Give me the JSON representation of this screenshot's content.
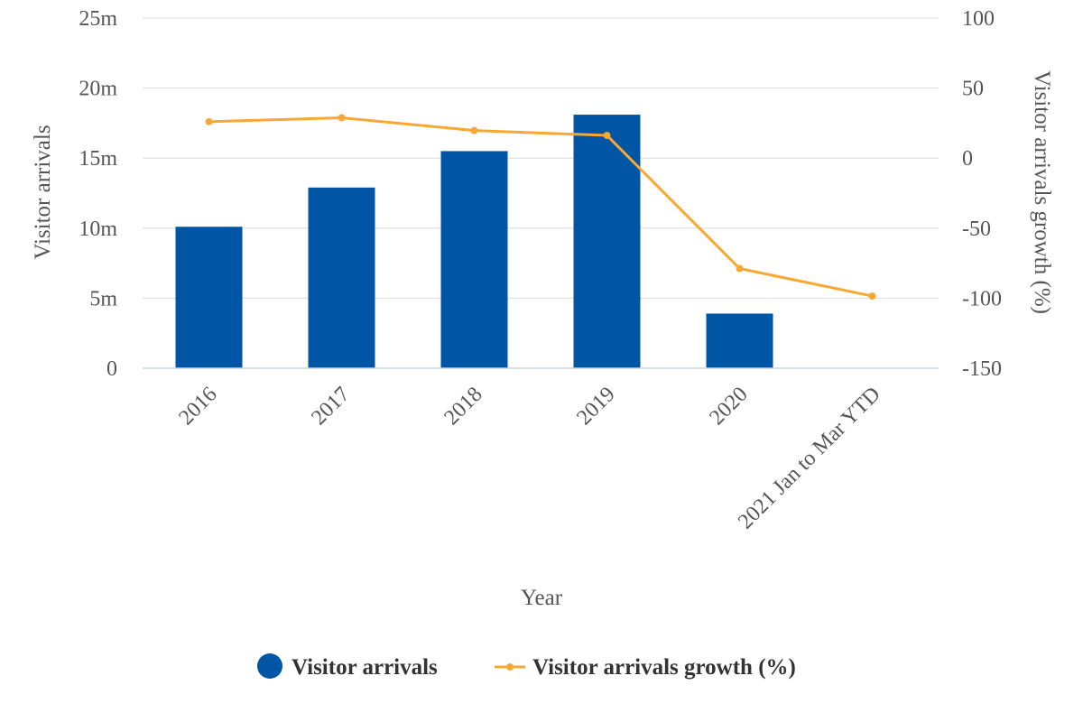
{
  "colors": {
    "bar": "#0055a5",
    "line": "#f7a833",
    "grid": "#dcdcdc",
    "text": "#555555"
  },
  "chart_data": {
    "type": "bar",
    "categories": [
      "2016",
      "2017",
      "2018",
      "2019",
      "2020",
      "2021 Jan to Mar YTD"
    ],
    "series": [
      {
        "name": "Visitor arrivals",
        "type": "bar",
        "axis": "left",
        "values": [
          10.1,
          12.9,
          15.5,
          18.1,
          3.9,
          0
        ]
      },
      {
        "name": "Visitor arrivals growth (%)",
        "type": "line",
        "axis": "right",
        "values": [
          26,
          28.8,
          19.7,
          16.2,
          -78.8,
          -98.5
        ]
      }
    ],
    "xlabel": "Year",
    "ylabel": "Visitor arrivals",
    "y2label": "Visitor arrivals growth (%)",
    "ylim": [
      0,
      25
    ],
    "y_ticks": [
      "0",
      "5m",
      "10m",
      "15m",
      "20m",
      "25m"
    ],
    "y2lim": [
      -150,
      100
    ],
    "y2_ticks": [
      "-150",
      "-100",
      "-50",
      "0",
      "50",
      "100"
    ],
    "grid": true,
    "legend": "bottom-center"
  }
}
